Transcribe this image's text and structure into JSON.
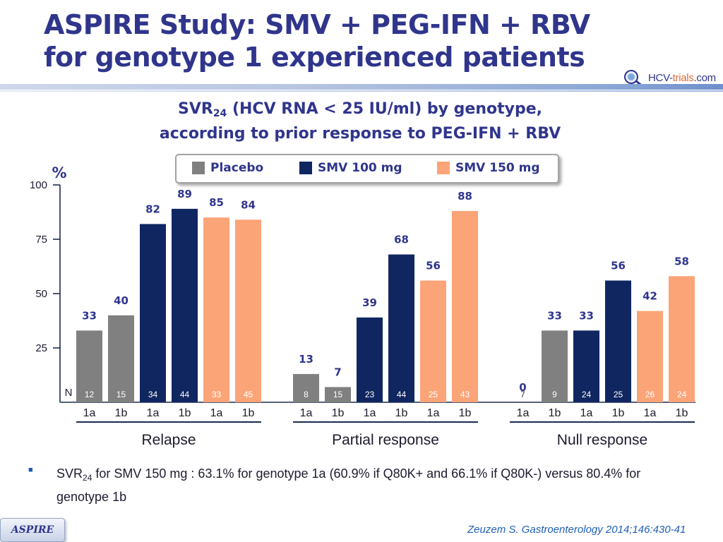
{
  "header": {
    "title_line1": "ASPIRE Study: SMV + PEG-IFN + RBV",
    "title_line2": "for genotype 1 experienced patients",
    "logo_main": "HCV-",
    "logo_accent": "trials",
    "logo_suffix": ".com"
  },
  "colors": {
    "title": "#30358c",
    "placebo": "#808080",
    "smv100": "#0f2660",
    "smv150": "#fba478",
    "label_text": "#30358c",
    "reference": "#1e5fb8"
  },
  "chart_data": {
    "type": "bar",
    "title_main": "SVR",
    "title_sub": "24",
    "title_rest": " (HCV RNA < 25 IU/ml) by genotype,",
    "subtitle": "according to prior response to PEG-IFN + RBV",
    "ylabel": "%",
    "ylim": [
      0,
      100
    ],
    "yticks": [
      25,
      50,
      75,
      100
    ],
    "n_label": "N",
    "legend": [
      {
        "key": "placebo",
        "label": "Placebo"
      },
      {
        "key": "smv100",
        "label": "SMV 100 mg"
      },
      {
        "key": "smv150",
        "label": "SMV 150 mg"
      }
    ],
    "groups": [
      {
        "name": "Relapse",
        "bars": [
          {
            "arm": "placebo",
            "genotype": "1a",
            "value": 33,
            "n": 12
          },
          {
            "arm": "placebo",
            "genotype": "1b",
            "value": 40,
            "n": 15
          },
          {
            "arm": "smv100",
            "genotype": "1a",
            "value": 82,
            "n": 34
          },
          {
            "arm": "smv100",
            "genotype": "1b",
            "value": 89,
            "n": 44
          },
          {
            "arm": "smv150",
            "genotype": "1a",
            "value": 85,
            "n": 33
          },
          {
            "arm": "smv150",
            "genotype": "1b",
            "value": 84,
            "n": 45
          }
        ]
      },
      {
        "name": "Partial response",
        "bars": [
          {
            "arm": "placebo",
            "genotype": "1a",
            "value": 13,
            "n": 8
          },
          {
            "arm": "placebo",
            "genotype": "1b",
            "value": 7,
            "n": 15
          },
          {
            "arm": "smv100",
            "genotype": "1a",
            "value": 39,
            "n": 23
          },
          {
            "arm": "smv100",
            "genotype": "1b",
            "value": 68,
            "n": 44
          },
          {
            "arm": "smv150",
            "genotype": "1a",
            "value": 56,
            "n": 25
          },
          {
            "arm": "smv150",
            "genotype": "1b",
            "value": 88,
            "n": 43
          }
        ]
      },
      {
        "name": "Null response",
        "bars": [
          {
            "arm": "placebo",
            "genotype": "1a",
            "value": 0,
            "n": 7
          },
          {
            "arm": "placebo",
            "genotype": "1b",
            "value": 33,
            "n": 9
          },
          {
            "arm": "smv100",
            "genotype": "1a",
            "value": 33,
            "n": 24
          },
          {
            "arm": "smv100",
            "genotype": "1b",
            "value": 56,
            "n": 25
          },
          {
            "arm": "smv150",
            "genotype": "1a",
            "value": 42,
            "n": 26
          },
          {
            "arm": "smv150",
            "genotype": "1b",
            "value": 58,
            "n": 24
          }
        ]
      }
    ]
  },
  "note": {
    "prefix": "SVR",
    "sub": "24",
    "text": " for SMV 150 mg : 63.1% for genotype 1a (60.9% if Q80K+ and 66.1% if Q80K-) versus 80.4% for genotype 1b"
  },
  "footer": {
    "study_tag": "ASPIRE",
    "reference": "Zeuzem S. Gastroenterology 2014;146:430-41"
  }
}
